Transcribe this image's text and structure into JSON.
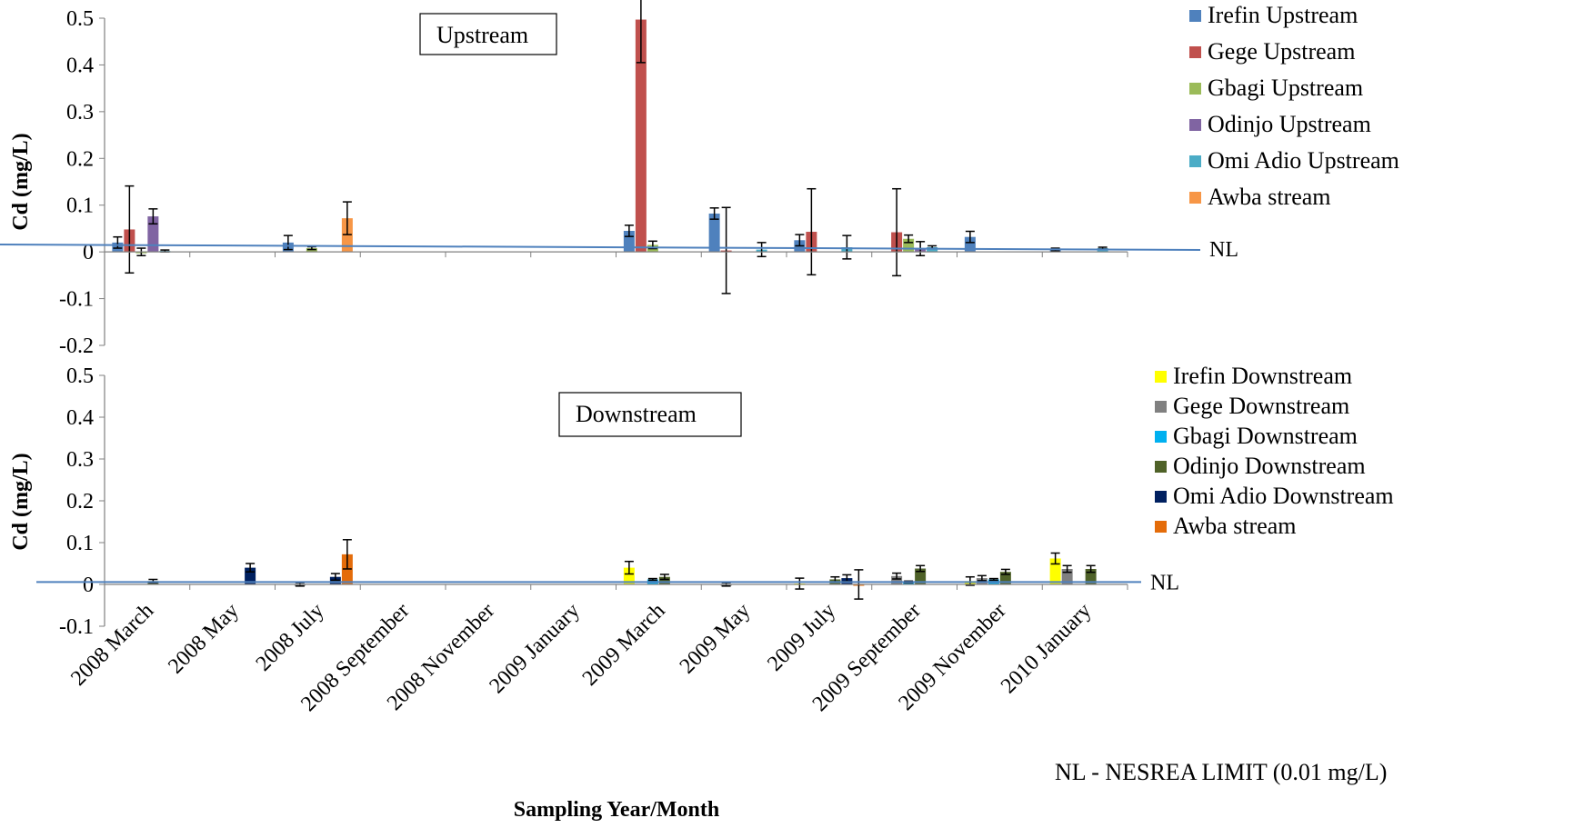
{
  "chart_data": [
    {
      "type": "bar",
      "panel": "upstream",
      "label_box": "Upstream",
      "ylabel": "Cd (mg/L)",
      "ylim": [
        -0.2,
        0.5
      ],
      "yticks": [
        "0.5",
        "0.4",
        "0.3",
        "0.2",
        "0.1",
        "0",
        "-0.1",
        "-0.2"
      ],
      "reference_line": {
        "label": "NL",
        "value": 0.01
      },
      "legend_position": "top-right",
      "categories": [
        "2008 March",
        "2008 May",
        "2008 July",
        "2008 September",
        "2008 November",
        "2009 January",
        "2009 March",
        "2009 May",
        "2009 July",
        "2009 September",
        "2009 November",
        "2010 January"
      ],
      "series": [
        {
          "name": "Irefin Upstream",
          "color": "#4f81bd",
          "values": [
            0.02,
            null,
            0.02,
            null,
            null,
            null,
            0.045,
            0.082,
            0.025,
            null,
            0.032,
            0.005
          ],
          "errors": [
            0.012,
            null,
            0.015,
            null,
            null,
            null,
            0.012,
            0.012,
            0.012,
            null,
            0.012,
            0.003
          ]
        },
        {
          "name": "Gege Upstream",
          "color": "#c0504d",
          "values": [
            0.048,
            null,
            null,
            null,
            null,
            null,
            0.497,
            0.003,
            0.043,
            0.042,
            null,
            null
          ],
          "errors": [
            0.093,
            null,
            null,
            null,
            null,
            null,
            0.092,
            0.092,
            0.092,
            0.093,
            null,
            null
          ]
        },
        {
          "name": "Gbagi Upstream",
          "color": "#9bbb59",
          "values": [
            0.0,
            null,
            0.008,
            null,
            null,
            null,
            0.015,
            null,
            null,
            0.028,
            null,
            null
          ],
          "errors": [
            0.008,
            null,
            0.003,
            null,
            null,
            null,
            0.008,
            null,
            null,
            0.008,
            null,
            null
          ]
        },
        {
          "name": "Odinjo Upstream",
          "color": "#8064a2",
          "values": [
            0.076,
            null,
            null,
            null,
            null,
            null,
            null,
            null,
            null,
            0.007,
            null,
            null
          ],
          "errors": [
            0.016,
            null,
            null,
            null,
            null,
            null,
            null,
            null,
            null,
            0.015,
            null,
            null
          ]
        },
        {
          "name": "Omi Adio Upstream",
          "color": "#4bacc6",
          "values": [
            0.002,
            null,
            null,
            null,
            null,
            null,
            null,
            0.005,
            0.01,
            0.01,
            null,
            0.008
          ],
          "errors": [
            0.002,
            null,
            null,
            null,
            null,
            null,
            null,
            0.015,
            0.025,
            0.003,
            null,
            0.002
          ]
        },
        {
          "name": "Awba stream",
          "color": "#f79646",
          "values": [
            null,
            null,
            0.072,
            null,
            null,
            null,
            null,
            null,
            null,
            null,
            null,
            null
          ],
          "errors": [
            null,
            null,
            0.035,
            null,
            null,
            null,
            null,
            null,
            null,
            null,
            null,
            null
          ]
        }
      ]
    },
    {
      "type": "bar",
      "panel": "downstream",
      "label_box": "Downstream",
      "ylabel": "Cd (mg/L)",
      "xlabel": "Sampling Year/Month",
      "ylim": [
        -0.1,
        0.5
      ],
      "yticks": [
        "0.5",
        "0.4",
        "0.3",
        "0.2",
        "0.1",
        "0",
        "-0.1"
      ],
      "reference_line": {
        "label": "NL",
        "value": 0.01
      },
      "legend_position": "top-right",
      "categories": [
        "2008 March",
        "2008 May",
        "2008 July",
        "2008 September",
        "2008 November",
        "2009 January",
        "2009 March",
        "2009 May",
        "2009 July",
        "2009 September",
        "2009 November",
        "2010 January"
      ],
      "series": [
        {
          "name": "Irefin Downstream",
          "color": "#ffff00",
          "values": [
            null,
            null,
            null,
            null,
            null,
            null,
            0.04,
            null,
            0.002,
            null,
            0.008,
            0.062
          ],
          "errors": [
            null,
            null,
            null,
            null,
            null,
            null,
            0.015,
            null,
            0.013,
            null,
            0.01,
            0.013
          ]
        },
        {
          "name": "Gege Downstream",
          "color": "#808080",
          "values": [
            null,
            null,
            0.0,
            null,
            null,
            null,
            null,
            0.0,
            null,
            0.02,
            0.015,
            0.037
          ],
          "errors": [
            null,
            null,
            0.004,
            null,
            null,
            null,
            null,
            0.004,
            null,
            0.007,
            0.006,
            0.008
          ]
        },
        {
          "name": "Gbagi Downstream",
          "color": "#00b0f0",
          "values": [
            null,
            null,
            null,
            null,
            null,
            null,
            0.012,
            null,
            null,
            0.006,
            0.012,
            null
          ],
          "errors": [
            null,
            null,
            null,
            null,
            null,
            null,
            0.002,
            null,
            null,
            0.002,
            0.002,
            null
          ]
        },
        {
          "name": "Odinjo Downstream",
          "color": "#4f6228",
          "values": [
            0.008,
            null,
            null,
            null,
            null,
            null,
            0.018,
            null,
            0.012,
            0.038,
            0.03,
            0.037
          ],
          "errors": [
            0.004,
            null,
            null,
            null,
            null,
            null,
            0.006,
            null,
            0.006,
            0.007,
            0.006,
            0.008
          ]
        },
        {
          "name": "Omi Adio Downstream",
          "color": "#002060",
          "values": [
            null,
            0.04,
            0.018,
            null,
            null,
            null,
            null,
            null,
            0.015,
            null,
            null,
            null
          ],
          "errors": [
            null,
            0.01,
            0.008,
            null,
            null,
            null,
            null,
            null,
            0.008,
            null,
            null,
            null
          ]
        },
        {
          "name": "Awba stream",
          "color": "#e46c0a",
          "values": [
            null,
            null,
            0.072,
            null,
            null,
            null,
            null,
            null,
            0.0,
            null,
            null,
            null
          ],
          "errors": [
            null,
            null,
            0.035,
            null,
            null,
            null,
            null,
            null,
            0.035,
            null,
            null,
            null
          ]
        }
      ]
    }
  ],
  "note": "NL - NESREA LIMIT (0.01 mg/L)"
}
